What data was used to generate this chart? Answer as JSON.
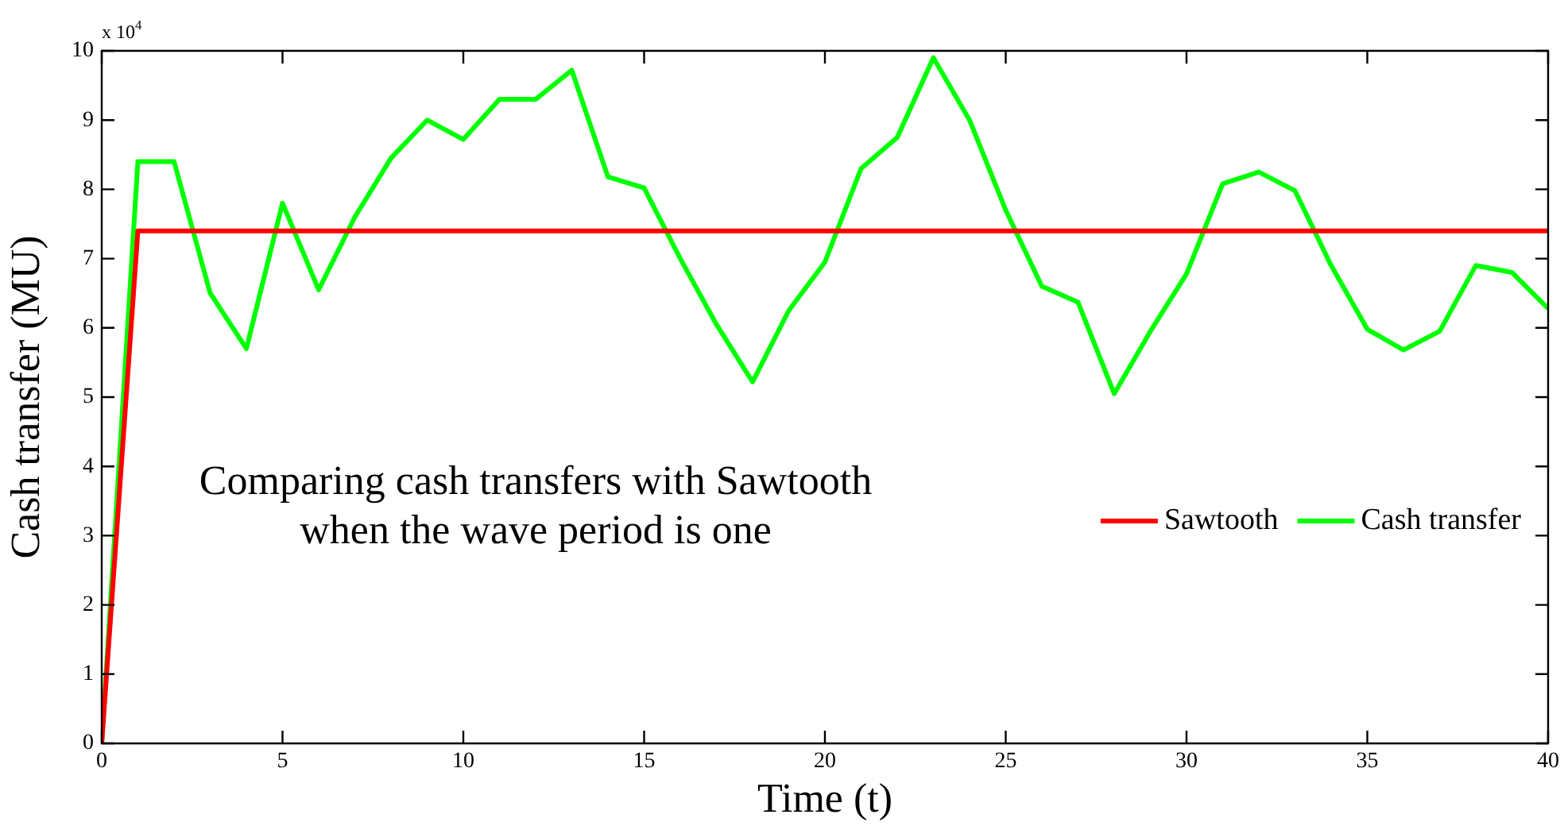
{
  "chart_data": {
    "type": "line",
    "xlabel": "Time (t)",
    "ylabel": "Cash transfer (MU)",
    "annotations": [
      "x 10$^{4}$",
      "Comparing cash transfers with Sawtooth when the wave period is one"
    ],
    "x": [
      0,
      1,
      2,
      3,
      4,
      5,
      6,
      7,
      8,
      9,
      10,
      11,
      12,
      13,
      14,
      15,
      16,
      17,
      18,
      19,
      20,
      21,
      22,
      23,
      24,
      25,
      26,
      27,
      28,
      29,
      30,
      31,
      32,
      33,
      34,
      35,
      36,
      37,
      38,
      39,
      40
    ],
    "series": [
      {
        "name": "Sawtooth",
        "color": "#ff0000",
        "values": [
          0,
          7.4,
          7.4,
          7.4,
          7.4,
          7.4,
          7.4,
          7.4,
          7.4,
          7.4,
          7.4,
          7.4,
          7.4,
          7.4,
          7.4,
          7.4,
          7.4,
          7.4,
          7.4,
          7.4,
          7.4,
          7.4,
          7.4,
          7.4,
          7.4,
          7.4,
          7.4,
          7.4,
          7.4,
          7.4,
          7.4,
          7.4,
          7.4,
          7.4,
          7.4,
          7.4,
          7.4,
          7.4,
          7.4,
          7.4,
          7.4
        ]
      },
      {
        "name": "Cash transfer",
        "color": "#00ff00",
        "values": [
          0,
          8.4,
          8.4,
          6.5,
          5.7,
          7.8,
          6.55,
          7.6,
          8.45,
          9.0,
          8.72,
          9.3,
          9.3,
          9.72,
          8.18,
          8.02,
          7.0,
          6.05,
          5.22,
          6.25,
          6.95,
          8.3,
          8.75,
          9.9,
          9.0,
          7.7,
          6.6,
          6.37,
          5.05,
          5.95,
          6.78,
          8.08,
          8.25,
          7.98,
          6.9,
          5.98,
          5.68,
          5.95,
          6.9,
          6.8,
          6.28
        ]
      }
    ],
    "xlim": [
      0,
      40
    ],
    "xticks": [
      0,
      5,
      10,
      15,
      20,
      25,
      30,
      35,
      40
    ],
    "ylim": [
      0,
      10
    ],
    "yticks": [
      0,
      1,
      2,
      3,
      4,
      5,
      6,
      7,
      8,
      9,
      10
    ],
    "grid": false,
    "legend": "right",
    "marker": "none",
    "line_style": "solid"
  }
}
